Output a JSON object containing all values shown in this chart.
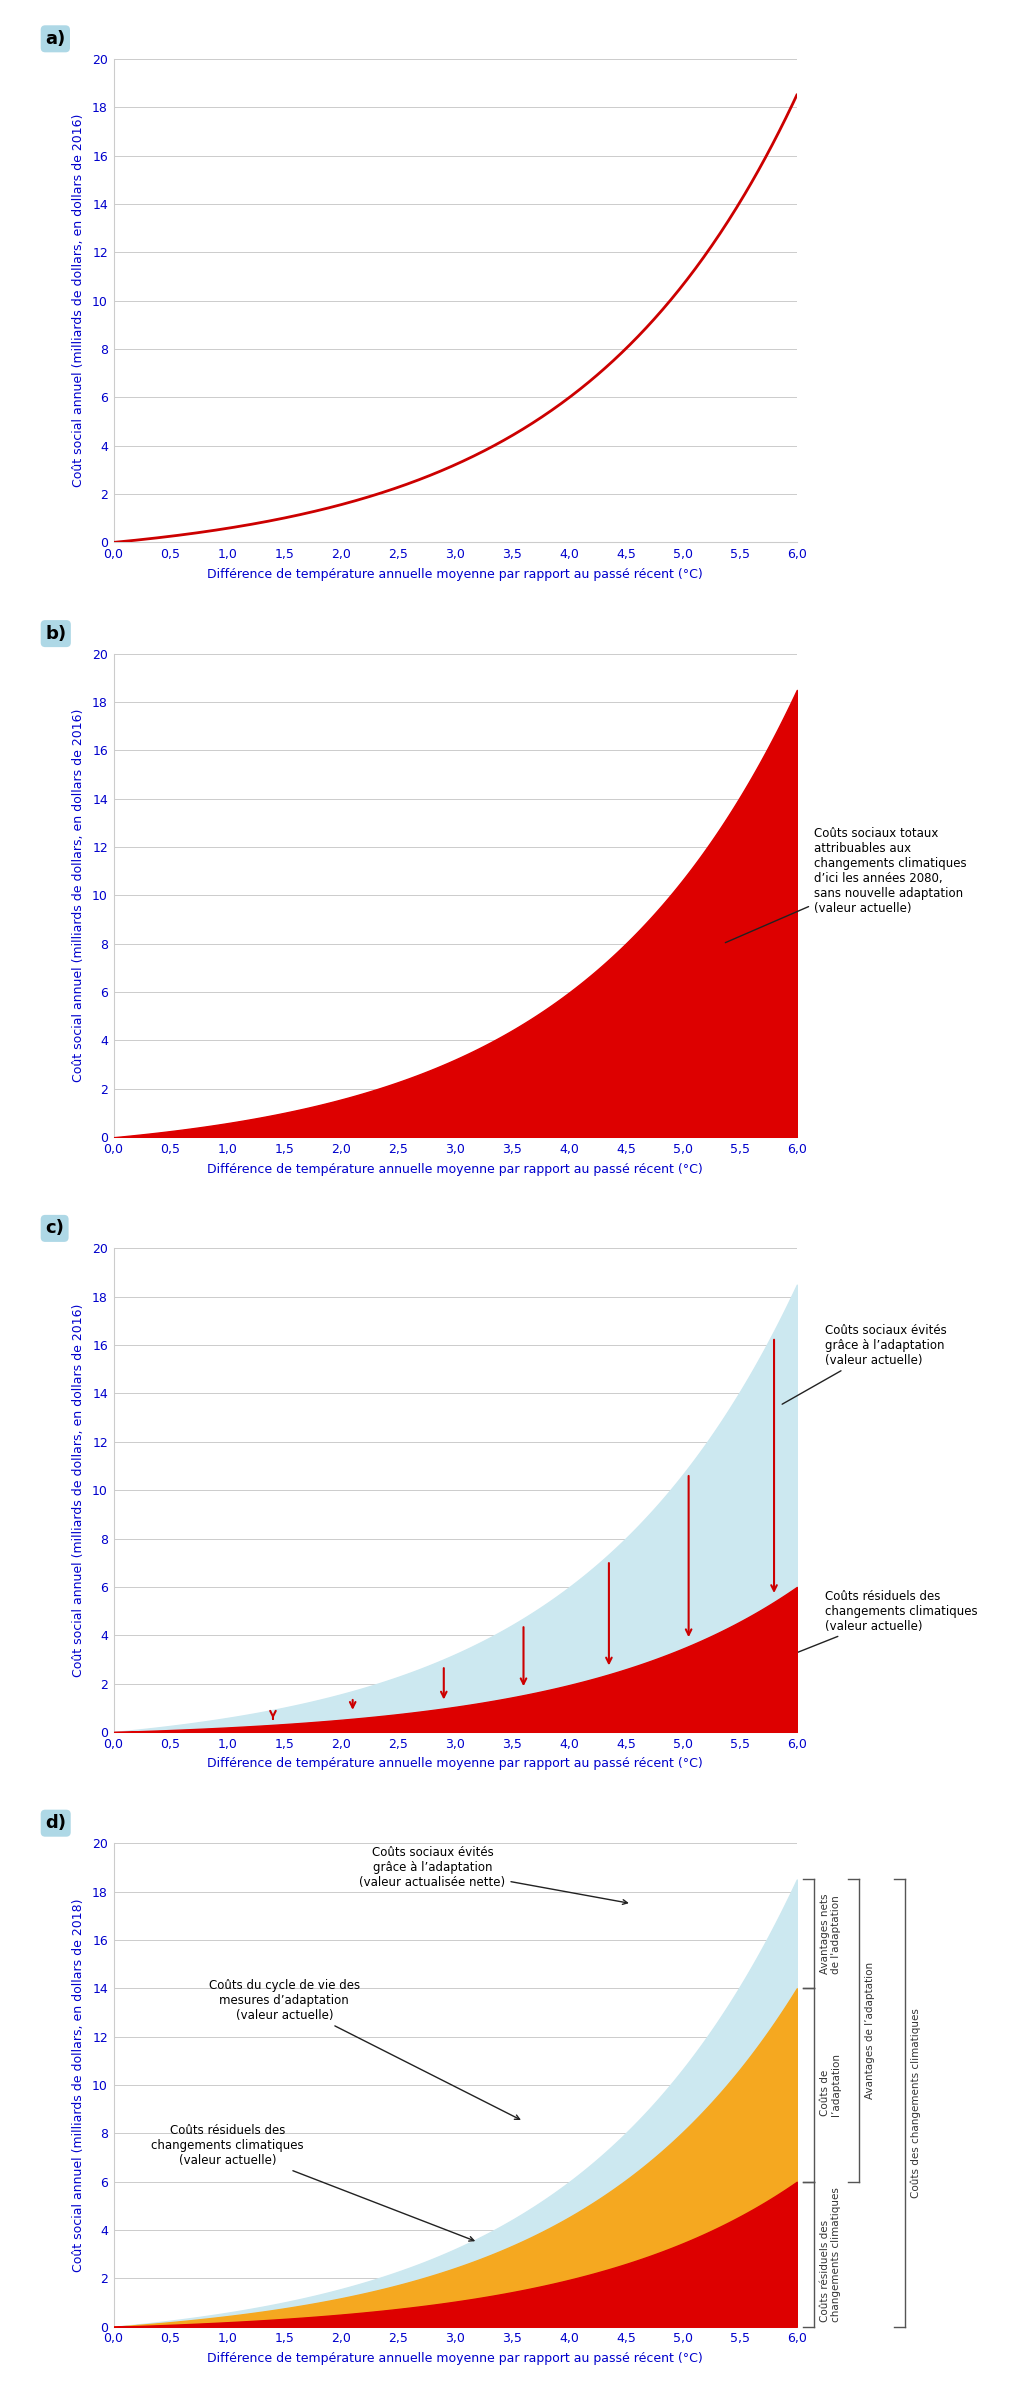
{
  "panel_labels": [
    "a)",
    "b)",
    "c)",
    "d)"
  ],
  "xlabel": "Différence de température annuelle moyenne par rapport au passé récent (°C)",
  "ylabel_2016": "Coût social annuel (milliards de dollars, en dollars de 2016)",
  "ylabel_2018": "Coût social annuel (milliards de dollars, en dollars de 2018)",
  "xlim": [
    0,
    6
  ],
  "ylim": [
    0,
    20
  ],
  "xticks": [
    0.0,
    0.5,
    1.0,
    1.5,
    2.0,
    2.5,
    3.0,
    3.5,
    4.0,
    4.5,
    5.0,
    5.5,
    6.0
  ],
  "yticks": [
    0,
    2,
    4,
    6,
    8,
    10,
    12,
    14,
    16,
    18,
    20
  ],
  "curve_color": "#cc0000",
  "fill_red_color": "#dd0000",
  "fill_blue_color": "#cce8f0",
  "fill_orange_color": "#f5a820",
  "label_color": "#0000cc",
  "panel_label_bg": "#aed8e6",
  "annotation_b": "Coûts sociaux totaux\nattribuables aux\nchangements climatiques\nd’ici les années 2080,\nsans nouvelle adaptation\n(valeur actuelle)",
  "annotation_c_blue": "Coûts sociaux évités\ngrâce à l’adaptation\n(valeur actuelle)",
  "annotation_c_red": "Coûts résiduels des\nchangements climatiques\n(valeur actuelle)",
  "annotation_d_blue": "Coûts sociaux évités\ngrâce à l’adaptation\n(valeur actualisée nette)",
  "annotation_d_orange": "Coûts du cycle de vie des\nmesures d’adaptation\n(valeur actuelle)",
  "annotation_d_red": "Coûts résiduels des\nchangements climatiques\n(valeur actuelle)",
  "arrows_c_x": [
    1.4,
    2.1,
    2.9,
    3.6,
    4.35,
    5.05,
    5.8
  ],
  "total_at_6": 18.5,
  "residual_at_6": 6.0,
  "orange_at_6": 14.0,
  "exp_k_total": 0.52,
  "exp_k_residual": 0.52,
  "exp_k_orange": 0.52
}
